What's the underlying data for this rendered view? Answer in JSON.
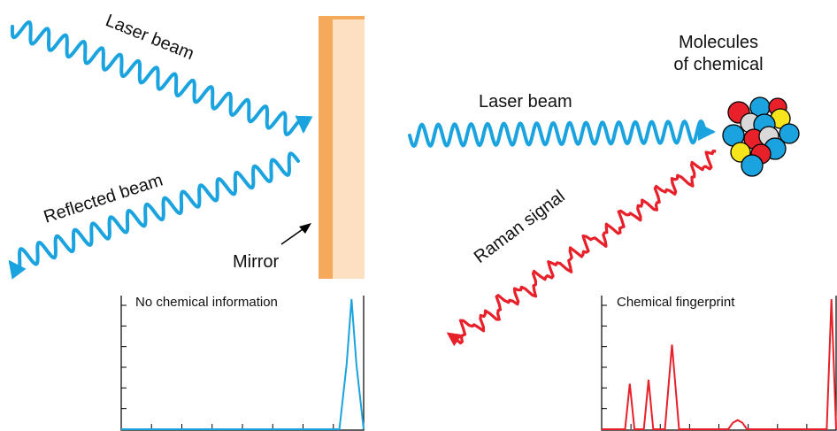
{
  "labels": {
    "laser_beam_left": "Laser beam",
    "reflected_beam": "Reflected beam",
    "mirror": "Mirror",
    "laser_beam_right": "Laser beam",
    "molecules_line1": "Molecules",
    "molecules_line2": "of chemical",
    "raman_signal": "Raman signal"
  },
  "colors": {
    "beam": "#1aa3df",
    "raman": "#e8202a",
    "mirror_frame": "#f5a95a",
    "mirror_face": "#fde0c2",
    "atom_red": "#e8202a",
    "atom_blue": "#1aa3df",
    "atom_yellow": "#f7e51c",
    "atom_gray": "#d9d9d9"
  },
  "chart_data": [
    {
      "type": "line",
      "title": "No chemical information",
      "series": [
        {
          "points": [
            [
              0,
              0
            ],
            [
              0.9,
              0
            ],
            [
              0.93,
              0.5
            ],
            [
              0.95,
              1.0
            ],
            [
              0.97,
              0.5
            ],
            [
              1.0,
              0
            ]
          ]
        }
      ]
    },
    {
      "type": "line",
      "title": "Chemical fingerprint",
      "series": [
        {
          "points": [
            [
              0,
              0
            ],
            [
              0.1,
              0
            ],
            [
              0.12,
              0.35
            ],
            [
              0.14,
              0
            ],
            [
              0.18,
              0
            ],
            [
              0.2,
              0.38
            ],
            [
              0.22,
              0
            ],
            [
              0.27,
              0
            ],
            [
              0.3,
              0.65
            ],
            [
              0.33,
              0
            ],
            [
              0.54,
              0
            ],
            [
              0.56,
              0.05
            ],
            [
              0.58,
              0.07
            ],
            [
              0.6,
              0.05
            ],
            [
              0.62,
              0
            ],
            [
              0.96,
              0
            ],
            [
              0.98,
              1.0
            ],
            [
              1.0,
              0
            ]
          ]
        }
      ]
    }
  ]
}
